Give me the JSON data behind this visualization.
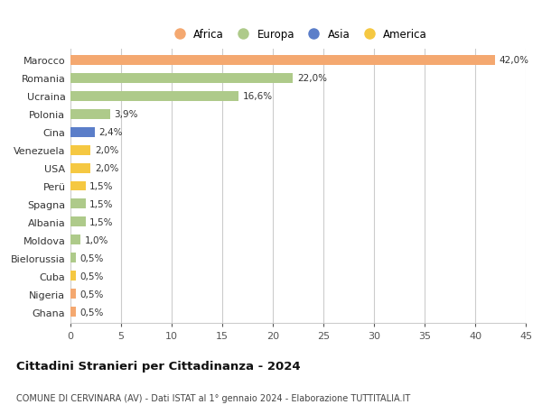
{
  "countries": [
    "Marocco",
    "Romania",
    "Ucraina",
    "Polonia",
    "Cina",
    "Venezuela",
    "USA",
    "Perü",
    "Spagna",
    "Albania",
    "Moldova",
    "Bielorussia",
    "Cuba",
    "Nigeria",
    "Ghana"
  ],
  "values": [
    42.0,
    22.0,
    16.6,
    3.9,
    2.4,
    2.0,
    2.0,
    1.5,
    1.5,
    1.5,
    1.0,
    0.5,
    0.5,
    0.5,
    0.5
  ],
  "labels": [
    "42,0%",
    "22,0%",
    "16,6%",
    "3,9%",
    "2,4%",
    "2,0%",
    "2,0%",
    "1,5%",
    "1,5%",
    "1,5%",
    "1,0%",
    "0,5%",
    "0,5%",
    "0,5%",
    "0,5%"
  ],
  "continents": [
    "Africa",
    "Europa",
    "Europa",
    "Europa",
    "Asia",
    "America",
    "America",
    "America",
    "Europa",
    "Europa",
    "Europa",
    "Europa",
    "America",
    "Africa",
    "Africa"
  ],
  "colors": {
    "Africa": "#F4A870",
    "Europa": "#AECA8A",
    "Asia": "#5B7EC9",
    "America": "#F5C842"
  },
  "bar_height": 0.55,
  "xlim": [
    0,
    45
  ],
  "xticks": [
    0,
    5,
    10,
    15,
    20,
    25,
    30,
    35,
    40,
    45
  ],
  "title": "Cittadini Stranieri per Cittadinanza - 2024",
  "subtitle": "COMUNE DI CERVINARA (AV) - Dati ISTAT al 1° gennaio 2024 - Elaborazione TUTTITALIA.IT",
  "legend_order": [
    "Africa",
    "Europa",
    "Asia",
    "America"
  ],
  "bg_color": "#ffffff",
  "grid_color": "#cccccc",
  "label_fontsize": 7.5,
  "ytick_fontsize": 8,
  "xtick_fontsize": 8
}
